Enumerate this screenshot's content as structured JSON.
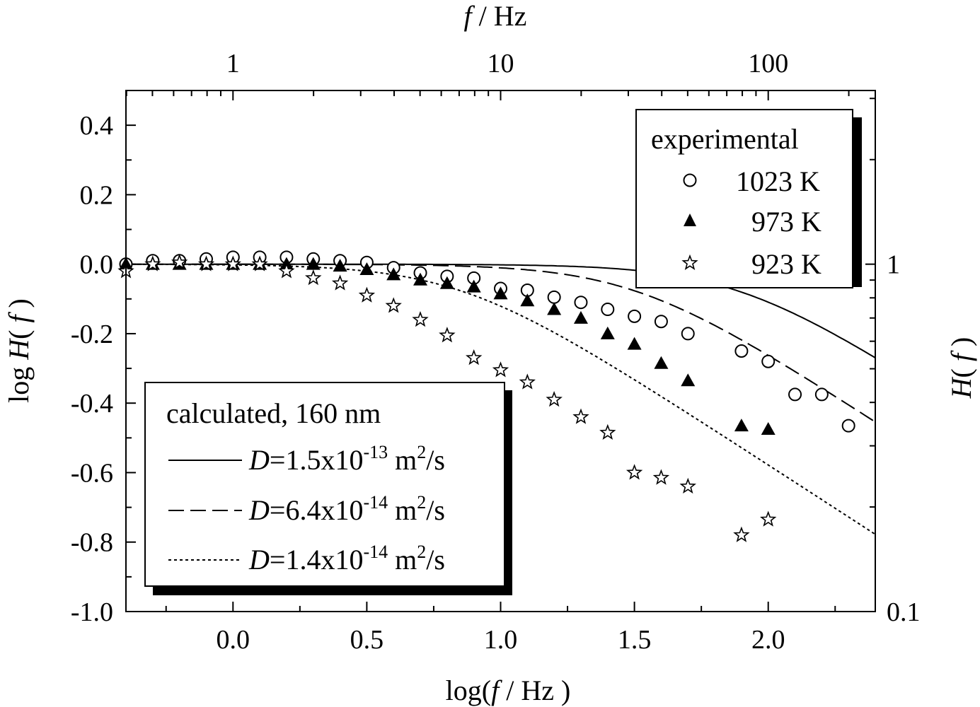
{
  "chart_data": {
    "type": "scatter",
    "x_axis": {
      "label_pre": "log(",
      "label_var": "f",
      "label_post": " / Hz )",
      "xlim": [
        -0.4,
        2.4
      ],
      "ticks": [
        0.0,
        0.5,
        1.0,
        1.5,
        2.0
      ],
      "tick_labels": [
        "0.0",
        "0.5",
        "1.0",
        "1.5",
        "2.0"
      ]
    },
    "y_axis": {
      "label_pre": "log ",
      "label_var": "H",
      "label_open": "( ",
      "label_var2": "f",
      "label_close": " )",
      "ylim": [
        -1.0,
        0.5
      ],
      "ticks": [
        0.4,
        0.2,
        0.0,
        -0.2,
        -0.4,
        -0.6,
        -0.8,
        -1.0
      ],
      "tick_labels": [
        "0.4",
        "0.2",
        "0.0",
        "-0.2",
        "-0.4",
        "-0.6",
        "-0.8",
        "-1.0"
      ]
    },
    "top_axis": {
      "label_var": "f",
      "label_unit": " / Hz",
      "ticks": [
        0,
        1,
        2
      ],
      "tick_labels": [
        "1",
        "10",
        "100"
      ]
    },
    "right_axis": {
      "label_var": "H",
      "label_open": "( ",
      "label_var2": "f",
      "label_close": " )",
      "ticks": [
        0,
        -1
      ],
      "tick_labels": [
        "1",
        "0.1"
      ]
    },
    "experimental_legend": {
      "title": "experimental",
      "entries": [
        "1023 K",
        "973 K",
        "923 K"
      ]
    },
    "calculated_legend": {
      "title": "calculated, 160 nm",
      "entries": [
        {
          "var": "D",
          "mantissa": "=1.5x10",
          "exp": "-13",
          "unit": " m",
          "unit_exp": "2",
          "unit_tail": "/s"
        },
        {
          "var": "D",
          "mantissa": "=6.4x10",
          "exp": "-14",
          "unit": " m",
          "unit_exp": "2",
          "unit_tail": "/s"
        },
        {
          "var": "D",
          "mantissa": "=1.4x10",
          "exp": "-14",
          "unit": " m",
          "unit_exp": "2",
          "unit_tail": "/s"
        }
      ]
    },
    "series": [
      {
        "name": "1023 K",
        "marker": "open-circle",
        "points": [
          [
            -0.4,
            0.0
          ],
          [
            -0.3,
            0.01
          ],
          [
            -0.2,
            0.01
          ],
          [
            -0.1,
            0.015
          ],
          [
            0.0,
            0.02
          ],
          [
            0.1,
            0.02
          ],
          [
            0.2,
            0.02
          ],
          [
            0.3,
            0.015
          ],
          [
            0.4,
            0.01
          ],
          [
            0.5,
            0.005
          ],
          [
            0.6,
            -0.01
          ],
          [
            0.7,
            -0.025
          ],
          [
            0.8,
            -0.035
          ],
          [
            0.9,
            -0.04
          ],
          [
            1.0,
            -0.07
          ],
          [
            1.1,
            -0.075
          ],
          [
            1.2,
            -0.095
          ],
          [
            1.3,
            -0.11
          ],
          [
            1.4,
            -0.13
          ],
          [
            1.5,
            -0.15
          ],
          [
            1.6,
            -0.165
          ],
          [
            1.7,
            -0.2
          ],
          [
            1.9,
            -0.25
          ],
          [
            2.0,
            -0.28
          ],
          [
            2.1,
            -0.375
          ],
          [
            2.2,
            -0.375
          ],
          [
            2.3,
            -0.465
          ]
        ]
      },
      {
        "name": "973 K",
        "marker": "filled-triangle",
        "points": [
          [
            -0.4,
            0.0
          ],
          [
            -0.3,
            0.0
          ],
          [
            -0.2,
            0.0
          ],
          [
            -0.1,
            0.0
          ],
          [
            0.0,
            0.0
          ],
          [
            0.1,
            0.0
          ],
          [
            0.2,
            0.0
          ],
          [
            0.3,
            0.0
          ],
          [
            0.4,
            -0.005
          ],
          [
            0.5,
            -0.015
          ],
          [
            0.6,
            -0.03
          ],
          [
            0.7,
            -0.045
          ],
          [
            0.8,
            -0.055
          ],
          [
            0.9,
            -0.065
          ],
          [
            1.0,
            -0.085
          ],
          [
            1.1,
            -0.105
          ],
          [
            1.2,
            -0.13
          ],
          [
            1.3,
            -0.155
          ],
          [
            1.4,
            -0.2
          ],
          [
            1.5,
            -0.23
          ],
          [
            1.6,
            -0.285
          ],
          [
            1.7,
            -0.335
          ],
          [
            1.9,
            -0.465
          ],
          [
            2.0,
            -0.475
          ]
        ]
      },
      {
        "name": "923 K",
        "marker": "open-star",
        "points": [
          [
            -0.4,
            -0.02
          ],
          [
            -0.3,
            0.0
          ],
          [
            -0.2,
            0.005
          ],
          [
            -0.1,
            0.0
          ],
          [
            0.0,
            0.0
          ],
          [
            0.1,
            0.0
          ],
          [
            0.2,
            -0.02
          ],
          [
            0.3,
            -0.04
          ],
          [
            0.4,
            -0.055
          ],
          [
            0.5,
            -0.09
          ],
          [
            0.6,
            -0.12
          ],
          [
            0.7,
            -0.16
          ],
          [
            0.8,
            -0.205
          ],
          [
            0.9,
            -0.27
          ],
          [
            1.0,
            -0.305
          ],
          [
            1.1,
            -0.34
          ],
          [
            1.2,
            -0.39
          ],
          [
            1.3,
            -0.44
          ],
          [
            1.4,
            -0.485
          ],
          [
            1.5,
            -0.6
          ],
          [
            1.6,
            -0.615
          ],
          [
            1.7,
            -0.64
          ],
          [
            1.9,
            -0.78
          ],
          [
            2.0,
            -0.735
          ]
        ]
      }
    ],
    "curves": [
      {
        "name": "D=1.5x10-13 m2/s",
        "style": "solid",
        "log_fc": 1.88
      },
      {
        "name": "D=6.4x10-14 m2/s",
        "style": "dashed",
        "log_fc": 1.495
      },
      {
        "name": "D=1.4x10-14 m2/s",
        "style": "dotted",
        "log_fc": 0.845
      }
    ]
  }
}
